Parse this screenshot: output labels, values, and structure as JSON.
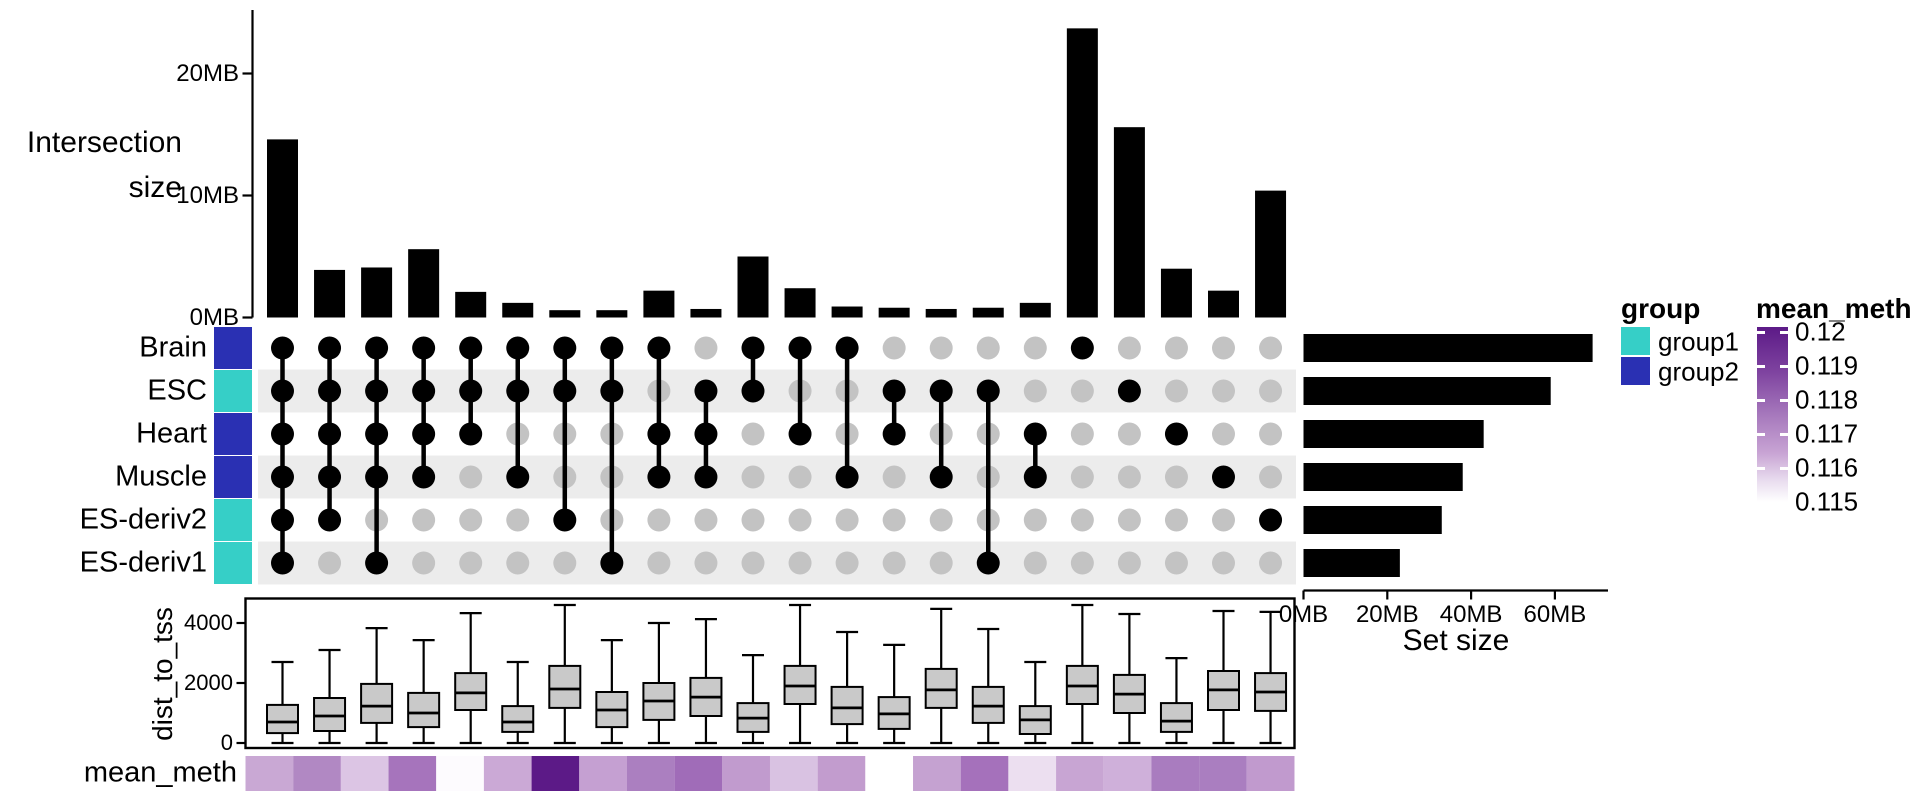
{
  "labels": {
    "intersection_size_line1": "Intersection",
    "intersection_size_line2": "size"
  },
  "group_legend": {
    "title": "group",
    "items": [
      {
        "label": "group1",
        "color": "#36cfc7"
      },
      {
        "label": "group2",
        "color": "#2a30b3"
      }
    ]
  },
  "meth_legend": {
    "title": "mean_meth",
    "ticks": [
      "0.12",
      "0.119",
      "0.118",
      "0.117",
      "0.116",
      "0.115"
    ],
    "top_color": "#5c1a87",
    "bottom_color": "#ffffff"
  },
  "chart_data": {
    "type": "upset",
    "meth_strip_label": "mean_meth",
    "colors": {
      "bar": "#000000",
      "inactive_dot": "#c3c3c3",
      "stripe": "#ececec",
      "box_fill": "#c9c9c9",
      "group1": "#36cfc7",
      "group2": "#2a30b3"
    },
    "intersection_axis": {
      "label": "Intersection size",
      "unit": "MB",
      "ticks": [
        {
          "label": "0MB",
          "mb": 0
        },
        {
          "label": "10MB",
          "mb": 10
        },
        {
          "label": "20MB",
          "mb": 20
        }
      ]
    },
    "set_size_axis": {
      "label": "Set size",
      "unit": "MB",
      "ticks": [
        {
          "label": "0MB",
          "mb": 0
        },
        {
          "label": "20MB",
          "mb": 20
        },
        {
          "label": "40MB",
          "mb": 40
        },
        {
          "label": "60MB",
          "mb": 60
        }
      ]
    },
    "boxplot_axis": {
      "label": "dist_to_tss",
      "ticks": [
        {
          "label": "0",
          "v": 0
        },
        {
          "label": "2000",
          "v": 2000
        },
        {
          "label": "4000",
          "v": 4000
        }
      ]
    },
    "sets": [
      {
        "name": "Brain",
        "group": "group2",
        "size_mb": 69
      },
      {
        "name": "ESC",
        "group": "group1",
        "size_mb": 59
      },
      {
        "name": "Heart",
        "group": "group2",
        "size_mb": 43
      },
      {
        "name": "Muscle",
        "group": "group2",
        "size_mb": 38
      },
      {
        "name": "ES-deriv2",
        "group": "group1",
        "size_mb": 33
      },
      {
        "name": "ES-deriv1",
        "group": "group1",
        "size_mb": 23
      }
    ],
    "intersections": [
      {
        "sets": [
          "Brain",
          "ESC",
          "Heart",
          "Muscle",
          "ES-deriv2",
          "ES-deriv1"
        ],
        "size_mb": 14.6,
        "box": {
          "lo": 0,
          "q1": 330,
          "med": 700,
          "q3": 1270,
          "hi": 2700
        },
        "mean_meth": 0.1166,
        "meth_color": "#c9a8d4"
      },
      {
        "sets": [
          "Brain",
          "ESC",
          "Heart",
          "Muscle",
          "ES-deriv2"
        ],
        "size_mb": 3.9,
        "box": {
          "lo": 0,
          "q1": 400,
          "med": 900,
          "q3": 1500,
          "hi": 3100
        },
        "mean_meth": 0.1174,
        "meth_color": "#b188c3"
      },
      {
        "sets": [
          "Brain",
          "ESC",
          "Heart",
          "Muscle",
          "ES-deriv1"
        ],
        "size_mb": 4.1,
        "box": {
          "lo": 0,
          "q1": 670,
          "med": 1230,
          "q3": 1970,
          "hi": 3830
        },
        "mean_meth": 0.1159,
        "meth_color": "#dcc5e4"
      },
      {
        "sets": [
          "Brain",
          "ESC",
          "Heart",
          "Muscle"
        ],
        "size_mb": 5.6,
        "box": {
          "lo": 0,
          "q1": 530,
          "med": 1000,
          "q3": 1670,
          "hi": 3430
        },
        "mean_meth": 0.118,
        "meth_color": "#a674bc"
      },
      {
        "sets": [
          "Brain",
          "ESC",
          "Heart"
        ],
        "size_mb": 2.1,
        "box": {
          "lo": 0,
          "q1": 1100,
          "med": 1670,
          "q3": 2330,
          "hi": 4330
        },
        "mean_meth": 0.1151,
        "meth_color": "#fdfbfe"
      },
      {
        "sets": [
          "Brain",
          "ESC",
          "Muscle"
        ],
        "size_mb": 1.2,
        "box": {
          "lo": 0,
          "q1": 370,
          "med": 700,
          "q3": 1230,
          "hi": 2700
        },
        "mean_meth": 0.1166,
        "meth_color": "#cba9d6"
      },
      {
        "sets": [
          "Brain",
          "ESC",
          "ES-deriv2"
        ],
        "size_mb": 0.6,
        "box": {
          "lo": 0,
          "q1": 1170,
          "med": 1800,
          "q3": 2570,
          "hi": 4600
        },
        "mean_meth": 0.12,
        "meth_color": "#5c1a87"
      },
      {
        "sets": [
          "Brain",
          "ESC",
          "ES-deriv1"
        ],
        "size_mb": 0.6,
        "box": {
          "lo": 0,
          "q1": 530,
          "med": 1100,
          "q3": 1700,
          "hi": 3430
        },
        "mean_meth": 0.1168,
        "meth_color": "#c5a0d2"
      },
      {
        "sets": [
          "Brain",
          "Heart",
          "Muscle"
        ],
        "size_mb": 2.2,
        "box": {
          "lo": 0,
          "q1": 770,
          "med": 1400,
          "q3": 2000,
          "hi": 4000
        },
        "mean_meth": 0.1176,
        "meth_color": "#ab7fc0"
      },
      {
        "sets": [
          "ESC",
          "Heart",
          "Muscle"
        ],
        "size_mb": 0.7,
        "box": {
          "lo": 0,
          "q1": 900,
          "med": 1530,
          "q3": 2170,
          "hi": 4130
        },
        "mean_meth": 0.1181,
        "meth_color": "#a06cb8"
      },
      {
        "sets": [
          "Brain",
          "ESC"
        ],
        "size_mb": 5.0,
        "box": {
          "lo": 0,
          "q1": 370,
          "med": 830,
          "q3": 1330,
          "hi": 2930
        },
        "mean_meth": 0.1169,
        "meth_color": "#c19bce"
      },
      {
        "sets": [
          "Brain",
          "Heart"
        ],
        "size_mb": 2.4,
        "box": {
          "lo": 0,
          "q1": 1300,
          "med": 1900,
          "q3": 2570,
          "hi": 4600
        },
        "mean_meth": 0.1161,
        "meth_color": "#d9c2e2"
      },
      {
        "sets": [
          "Brain",
          "Muscle"
        ],
        "size_mb": 0.9,
        "box": {
          "lo": 0,
          "q1": 630,
          "med": 1170,
          "q3": 1870,
          "hi": 3700
        },
        "mean_meth": 0.1169,
        "meth_color": "#c29cce"
      },
      {
        "sets": [
          "ESC",
          "Heart"
        ],
        "size_mb": 0.8,
        "box": {
          "lo": 0,
          "q1": 470,
          "med": 970,
          "q3": 1530,
          "hi": 3270
        },
        "mean_meth": 0.115,
        "meth_color": "#ffffff"
      },
      {
        "sets": [
          "ESC",
          "Muscle"
        ],
        "size_mb": 0.7,
        "box": {
          "lo": 0,
          "q1": 1170,
          "med": 1770,
          "q3": 2470,
          "hi": 4470
        },
        "mean_meth": 0.1167,
        "meth_color": "#c5a2d1"
      },
      {
        "sets": [
          "ESC",
          "ES-deriv1"
        ],
        "size_mb": 0.8,
        "box": {
          "lo": 0,
          "q1": 670,
          "med": 1230,
          "q3": 1870,
          "hi": 3800
        },
        "mean_meth": 0.1179,
        "meth_color": "#a571bb"
      },
      {
        "sets": [
          "Heart",
          "Muscle"
        ],
        "size_mb": 1.2,
        "box": {
          "lo": 0,
          "q1": 300,
          "med": 770,
          "q3": 1230,
          "hi": 2700
        },
        "mean_meth": 0.1155,
        "meth_color": "#ecdff0"
      },
      {
        "sets": [
          "Brain"
        ],
        "size_mb": 23.7,
        "box": {
          "lo": 0,
          "q1": 1300,
          "med": 1900,
          "q3": 2570,
          "hi": 4600
        },
        "mean_meth": 0.1167,
        "meth_color": "#c8a5d3"
      },
      {
        "sets": [
          "ESC"
        ],
        "size_mb": 15.6,
        "box": {
          "lo": 0,
          "q1": 1000,
          "med": 1630,
          "q3": 2270,
          "hi": 4300
        },
        "mean_meth": 0.1164,
        "meth_color": "#cfb0da"
      },
      {
        "sets": [
          "Heart"
        ],
        "size_mb": 4.0,
        "box": {
          "lo": 0,
          "q1": 370,
          "med": 730,
          "q3": 1330,
          "hi": 2830
        },
        "mean_meth": 0.1177,
        "meth_color": "#a97cbf"
      },
      {
        "sets": [
          "Muscle"
        ],
        "size_mb": 2.2,
        "box": {
          "lo": 0,
          "q1": 1100,
          "med": 1770,
          "q3": 2400,
          "hi": 4400
        },
        "mean_meth": 0.1177,
        "meth_color": "#aa7ec0"
      },
      {
        "sets": [
          "ES-deriv2"
        ],
        "size_mb": 10.4,
        "box": {
          "lo": 0,
          "q1": 1070,
          "med": 1700,
          "q3": 2330,
          "hi": 4370
        },
        "mean_meth": 0.1169,
        "meth_color": "#c19ace"
      }
    ]
  }
}
